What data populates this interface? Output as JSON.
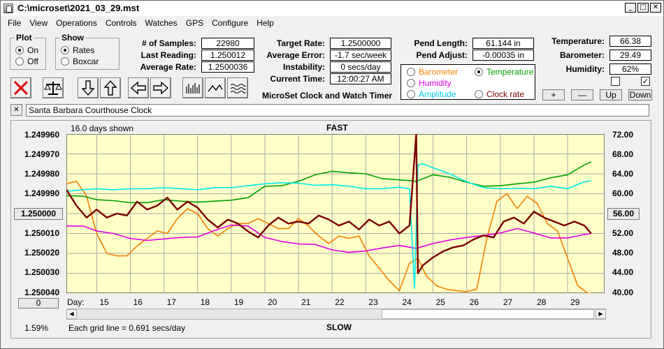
{
  "window": {
    "title": "C:\\microset\\2021_03_29.mst"
  },
  "menu": [
    "File",
    "View",
    "Operations",
    "Controls",
    "Watches",
    "GPS",
    "Configure",
    "Help"
  ],
  "plot_group": {
    "title": "Plot",
    "on": "On",
    "off": "Off",
    "selected": "On"
  },
  "show_group": {
    "title": "Show",
    "rates": "Rates",
    "boxcar": "Boxcar",
    "selected": "Rates"
  },
  "stats": {
    "samples_label": "# of Samples:",
    "samples": "22980",
    "last_label": "Last Reading:",
    "last": "1.250012",
    "avg_label": "Average Rate:",
    "avg": "1.2500036",
    "target_label": "Target Rate:",
    "target": "1.2500000",
    "avgerr_label": "Average Error:",
    "avgerr": "-1.7 sec/week",
    "instab_label": "Instability:",
    "instab": "0 secs/day",
    "time_label": "Current Time:",
    "time": "12:00:27 AM",
    "pendlen_label": "Pend Length:",
    "pendlen": "61.144 in",
    "pendadj_label": "Pend Adjust:",
    "pendadj": "-0.00035 in",
    "temp_label": "Temperature:",
    "temp": "66.38",
    "baro_label": "Barometer:",
    "baro": "29.49",
    "hum_label": "Humidity:",
    "hum": "62%"
  },
  "app_name": "MicroSet Clock and Watch Timer",
  "sensors": {
    "barometer": "Barometer",
    "temperature": "Temperature",
    "humidity": "Humidity",
    "amplitude": "Amplitude",
    "clockrate": "Clock rate",
    "selected": "Temperature"
  },
  "adjust_buttons": {
    "plus": "+",
    "minus": "—",
    "up": "Up",
    "down": "Down"
  },
  "checkbox_right": "✓",
  "close_small": "✕",
  "clock_name": "Santa Barbara Courthouse Clock",
  "plot": {
    "days_shown": "16.0 days shown",
    "fast": "FAST",
    "slow": "SLOW",
    "center_value": "1.250000",
    "right_center": "56.00",
    "offset_btn": "0",
    "day_label": "Day:",
    "grid_note": "Each grid line = 0.691 secs/day",
    "percent": "1.59%"
  },
  "chart_data": {
    "type": "line",
    "xlabel": "Day:",
    "x_ticks": [
      15,
      16,
      17,
      18,
      19,
      20,
      21,
      22,
      23,
      24,
      25,
      26,
      27,
      28,
      29
    ],
    "xlim": [
      14.1,
      30.1
    ],
    "y_left_ticks": [
      "1.249960",
      "1.249970",
      "1.249980",
      "1.249990",
      "1.250000",
      "1.250010",
      "1.250020",
      "1.250030",
      "1.250040"
    ],
    "ylim_left": [
      1.24996,
      1.25004
    ],
    "y_right_ticks": [
      "72.00",
      "68.00",
      "64.00",
      "60.00",
      "56.00",
      "52.00",
      "48.00",
      "44.00",
      "40.00"
    ],
    "ylim_right": [
      72,
      40
    ],
    "colors": {
      "rate": "#7a0000",
      "temperature": "#00a000",
      "humidity": "#e000e0",
      "amplitude": "#00e8e8",
      "barometer": "#f08000"
    },
    "series": [
      {
        "key": "rate",
        "color": "#7a0000",
        "x": [
          14.1,
          14.4,
          14.7,
          15.0,
          15.3,
          15.6,
          15.9,
          16.2,
          16.5,
          16.8,
          17.1,
          17.4,
          17.7,
          18.0,
          18.3,
          18.6,
          18.9,
          19.2,
          19.5,
          19.8,
          20.1,
          20.4,
          20.7,
          21.0,
          21.3,
          21.6,
          21.9,
          22.2,
          22.5,
          22.8,
          23.1,
          23.4,
          23.7,
          24.0,
          24.3,
          24.5,
          24.55,
          24.7,
          25.0,
          25.3,
          25.6,
          25.9,
          26.2,
          26.5,
          26.8,
          27.1,
          27.4,
          27.7,
          28.0,
          28.3,
          28.6,
          28.9,
          29.2,
          29.5,
          29.7
        ],
        "y": [
          1.249988,
          1.249996,
          1.250002,
          1.249998,
          1.250002,
          1.25,
          1.250001,
          1.249994,
          1.249998,
          1.249996,
          1.249992,
          1.249998,
          1.249994,
          1.249997,
          1.250003,
          1.250007,
          1.250003,
          1.250005,
          1.250009,
          1.250012,
          1.250006,
          1.250002,
          1.250005,
          1.250004,
          1.250005,
          1.250001,
          1.250003,
          1.250006,
          1.250004,
          1.250008,
          1.250003,
          1.250006,
          1.250004,
          1.25001,
          1.250006,
          1.24996,
          1.25003,
          1.250026,
          1.250022,
          1.250019,
          1.250017,
          1.250016,
          1.250013,
          1.250011,
          1.250012,
          1.250004,
          1.250002,
          1.250005,
          1.249999,
          1.250002,
          1.250004,
          1.250006,
          1.250004,
          1.250006,
          1.25001
        ]
      },
      {
        "key": "temperature",
        "color": "#00a000",
        "x": [
          14.1,
          14.6,
          15.0,
          15.5,
          16.0,
          16.5,
          17.0,
          17.5,
          18.0,
          18.5,
          19.0,
          19.5,
          20.0,
          20.5,
          21.0,
          21.5,
          22.0,
          22.5,
          23.0,
          23.5,
          24.0,
          24.5,
          25.0,
          25.5,
          26.0,
          26.5,
          27.0,
          27.5,
          28.0,
          28.5,
          29.0,
          29.5,
          29.7
        ],
        "y": [
          59.6,
          59.5,
          58.8,
          58.6,
          58.2,
          58.2,
          58.8,
          58.5,
          58.3,
          58.5,
          58.7,
          59.2,
          61.5,
          61.6,
          62.5,
          63.8,
          64.5,
          64.2,
          64.0,
          63.0,
          62.8,
          62.5,
          63.8,
          63.3,
          62.3,
          61.5,
          61.6,
          62.0,
          62.3,
          63.2,
          63.8,
          65.8,
          66.4
        ]
      },
      {
        "key": "humidity",
        "color": "#e000e0",
        "x": [
          14.1,
          14.6,
          15.0,
          15.5,
          16.0,
          16.5,
          17.0,
          17.5,
          18.0,
          18.5,
          19.0,
          19.5,
          20.0,
          20.5,
          21.0,
          21.5,
          22.0,
          22.5,
          23.0,
          23.5,
          24.0,
          24.5,
          25.0,
          25.5,
          26.0,
          26.5,
          27.0,
          27.5,
          28.0,
          28.5,
          29.0,
          29.5,
          29.7
        ],
        "y": [
          53.5,
          53.5,
          52.5,
          52.0,
          51.0,
          50.6,
          50.9,
          51.2,
          51.3,
          52.6,
          53.7,
          53.5,
          51.2,
          50.4,
          49.9,
          49.8,
          48.7,
          48.2,
          48.5,
          49.1,
          49.6,
          49.0,
          50.0,
          50.7,
          51.2,
          51.6,
          52.1,
          53.0,
          52.1,
          51.1,
          51.1,
          51.8,
          52.0
        ]
      },
      {
        "key": "amplitude",
        "color": "#00e8e8",
        "x": [
          14.1,
          14.6,
          15.0,
          15.5,
          16.0,
          16.5,
          17.0,
          17.5,
          18.0,
          18.5,
          19.0,
          19.5,
          20.0,
          20.5,
          21.0,
          21.5,
          22.0,
          22.5,
          23.0,
          23.5,
          24.0,
          24.3,
          24.45,
          24.55,
          24.7,
          25.0,
          25.5,
          26.0,
          26.5,
          27.0,
          27.5,
          28.0,
          28.5,
          29.0,
          29.5,
          29.7
        ],
        "y": [
          60.5,
          60.8,
          61.0,
          60.8,
          61.0,
          61.0,
          61.2,
          61.0,
          60.8,
          61.2,
          61.2,
          61.6,
          62.0,
          62.2,
          62.1,
          61.7,
          61.8,
          61.5,
          61.0,
          61.0,
          61.3,
          61.0,
          41.0,
          65.8,
          66.0,
          65.2,
          64.0,
          62.4,
          61.2,
          61.0,
          61.1,
          61.0,
          61.5,
          61.0,
          62.4,
          62.6
        ]
      },
      {
        "key": "barometer",
        "color": "#f08000",
        "x": [
          14.1,
          14.4,
          14.7,
          15.0,
          15.3,
          15.6,
          15.9,
          16.2,
          16.5,
          16.8,
          17.1,
          17.4,
          17.7,
          18.0,
          18.3,
          18.6,
          18.9,
          19.2,
          19.5,
          19.8,
          20.1,
          20.4,
          20.7,
          21.0,
          21.3,
          21.6,
          21.9,
          22.2,
          22.5,
          22.8,
          23.1,
          23.4,
          23.7,
          24.0,
          24.3,
          24.55,
          24.8,
          25.1,
          25.4,
          25.7,
          26.0,
          26.3,
          26.6,
          26.9,
          27.2,
          27.5,
          27.8,
          28.1,
          28.4,
          28.7,
          29.0,
          29.3,
          29.6,
          29.7
        ],
        "y": [
          62.0,
          62.5,
          59.5,
          52.0,
          48.0,
          47.5,
          47.5,
          49.5,
          51.0,
          52.5,
          52.0,
          55.0,
          57.0,
          56.0,
          53.0,
          51.5,
          53.0,
          54.0,
          54.0,
          55.0,
          54.0,
          53.0,
          53.0,
          55.0,
          53.5,
          51.5,
          50.0,
          51.5,
          51.0,
          51.5,
          47.5,
          45.0,
          42.5,
          40.5,
          46.0,
          47.0,
          43.5,
          41.5,
          40.8,
          40.5,
          40.3,
          40.8,
          51.0,
          58.5,
          60.0,
          57.0,
          59.5,
          58.0,
          54.0,
          52.5,
          47.0,
          41.5,
          40.0,
          40.0
        ]
      }
    ]
  }
}
